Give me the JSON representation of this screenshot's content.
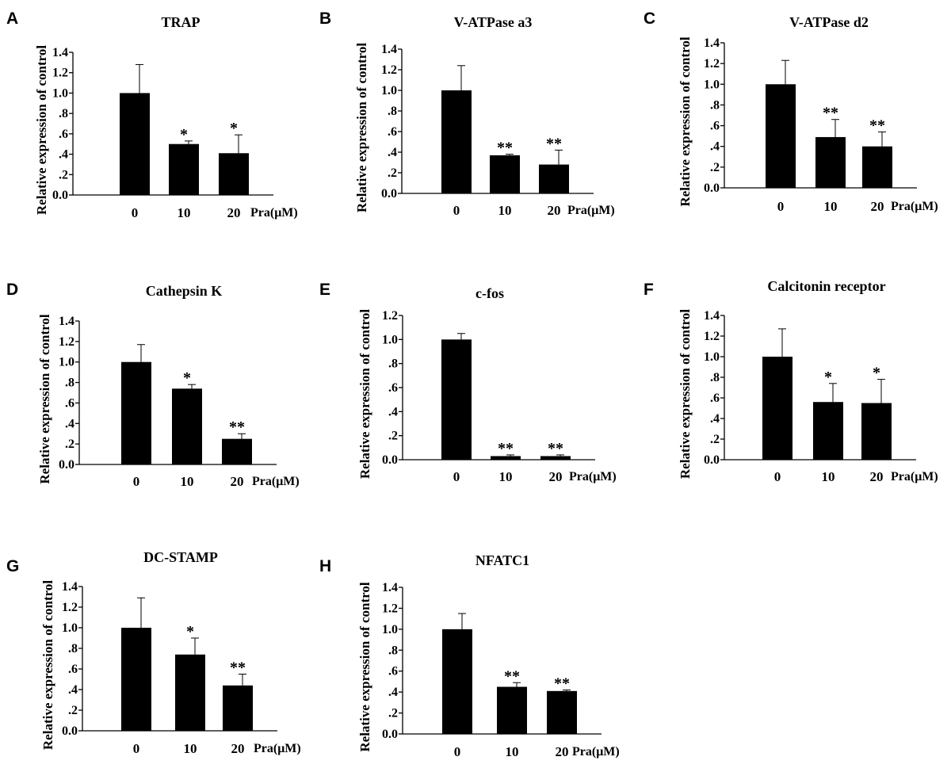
{
  "chart_data": [
    {
      "type": "bar",
      "panel": "A",
      "title": "TRAP",
      "ylabel": "Relative expression of control",
      "xlabel": "Pra(μM)",
      "categories": [
        "0",
        "10",
        "20"
      ],
      "values": [
        1.0,
        0.5,
        0.41
      ],
      "errors": [
        0.28,
        0.03,
        0.18
      ],
      "significance": [
        "",
        "*",
        "*"
      ],
      "ylim": [
        0,
        1.4
      ],
      "yticks": [
        "0.0",
        ".2",
        ".4",
        ".6",
        ".8",
        "1.0",
        "1.2",
        "1.4"
      ]
    },
    {
      "type": "bar",
      "panel": "B",
      "title": "V-ATPase a3",
      "ylabel": "Relative expression of control",
      "xlabel": "Pra(μM)",
      "categories": [
        "0",
        "10",
        "20"
      ],
      "values": [
        1.0,
        0.37,
        0.28
      ],
      "errors": [
        0.24,
        0.01,
        0.14
      ],
      "significance": [
        "",
        "**",
        "**"
      ],
      "ylim": [
        0,
        1.4
      ],
      "yticks": [
        "0.0",
        ".2",
        ".4",
        ".6",
        ".8",
        "1.0",
        "1.2",
        "1.4"
      ]
    },
    {
      "type": "bar",
      "panel": "C",
      "title": "V-ATPase d2",
      "ylabel": "Relative expression of control",
      "xlabel": "Pra(μM)",
      "categories": [
        "0",
        "10",
        "20"
      ],
      "values": [
        1.0,
        0.49,
        0.4
      ],
      "errors": [
        0.23,
        0.17,
        0.14
      ],
      "significance": [
        "",
        "**",
        "**"
      ],
      "ylim": [
        0,
        1.4
      ],
      "yticks": [
        "0.0",
        ".2",
        ".4",
        ".6",
        ".8",
        "1.0",
        "1.2",
        "1.4"
      ]
    },
    {
      "type": "bar",
      "panel": "D",
      "title": "Cathepsin K",
      "ylabel": "Relative expression of control",
      "xlabel": "Pra(μM)",
      "categories": [
        "0",
        "10",
        "20"
      ],
      "values": [
        1.0,
        0.74,
        0.25
      ],
      "errors": [
        0.17,
        0.04,
        0.05
      ],
      "significance": [
        "",
        "*",
        "**"
      ],
      "ylim": [
        0,
        1.4
      ],
      "yticks": [
        "0.0",
        ".2",
        ".4",
        ".6",
        ".8",
        "1.0",
        "1.2",
        "1.4"
      ]
    },
    {
      "type": "bar",
      "panel": "E",
      "title": "c-fos",
      "ylabel": "Relative expression of control",
      "xlabel": "Pra(μM)",
      "categories": [
        "0",
        "10",
        "20"
      ],
      "values": [
        1.0,
        0.03,
        0.03
      ],
      "errors": [
        0.05,
        0.01,
        0.01
      ],
      "significance": [
        "",
        "**",
        "**"
      ],
      "ylim": [
        0,
        1.2
      ],
      "yticks": [
        "0.0",
        ".2",
        ".4",
        ".6",
        ".8",
        "1.0",
        "1.2"
      ]
    },
    {
      "type": "bar",
      "panel": "F",
      "title": "Calcitonin receptor",
      "ylabel": "Relative expression of control",
      "xlabel": "Pra(μM)",
      "categories": [
        "0",
        "10",
        "20"
      ],
      "values": [
        1.0,
        0.56,
        0.55
      ],
      "errors": [
        0.27,
        0.18,
        0.23
      ],
      "significance": [
        "",
        "*",
        "*"
      ],
      "ylim": [
        0,
        1.4
      ],
      "yticks": [
        "0.0",
        ".2",
        ".4",
        ".6",
        ".8",
        "1.0",
        "1.2",
        "1.4"
      ]
    },
    {
      "type": "bar",
      "panel": "G",
      "title": "DC-STAMP",
      "ylabel": "Relative expression of control",
      "xlabel": "Pra(μM)",
      "categories": [
        "0",
        "10",
        "20"
      ],
      "values": [
        1.0,
        0.74,
        0.44
      ],
      "errors": [
        0.29,
        0.16,
        0.11
      ],
      "significance": [
        "",
        "*",
        "**"
      ],
      "ylim": [
        0,
        1.4
      ],
      "yticks": [
        "0.0",
        ".2",
        ".4",
        ".6",
        ".8",
        "1.0",
        "1.2",
        "1.4"
      ]
    },
    {
      "type": "bar",
      "panel": "H",
      "title": "NFATC1",
      "ylabel": "Relative expression of control",
      "xlabel": "Pra(μM)",
      "categories": [
        "0",
        "10",
        "20"
      ],
      "values": [
        1.0,
        0.45,
        0.41
      ],
      "errors": [
        0.15,
        0.04,
        0.01
      ],
      "significance": [
        "",
        "**",
        "**"
      ],
      "ylim": [
        0,
        1.4
      ],
      "yticks": [
        "0.0",
        ".2",
        ".4",
        ".6",
        ".8",
        "1.0",
        "1.2",
        "1.4"
      ]
    }
  ]
}
